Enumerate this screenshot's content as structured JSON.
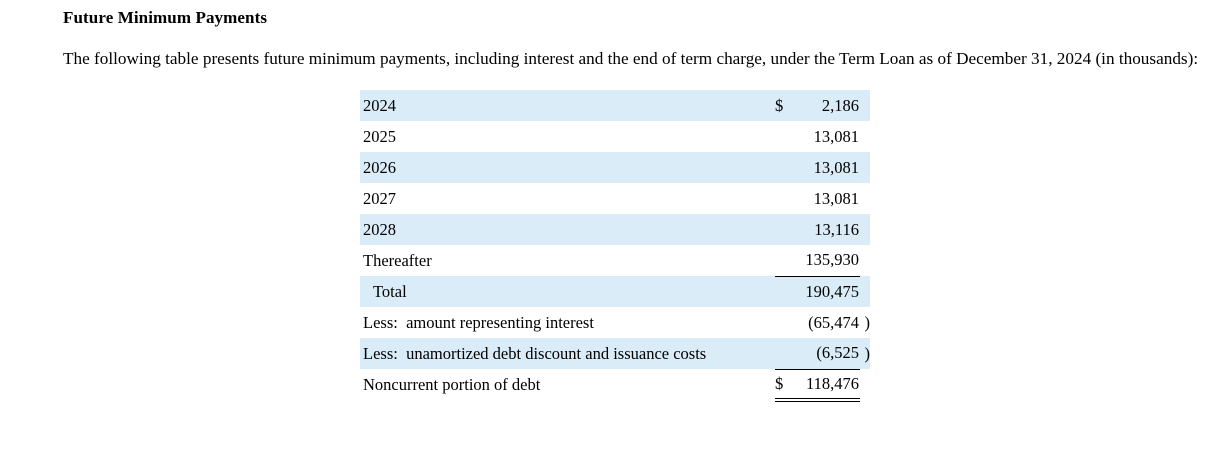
{
  "page": {
    "heading": "Future Minimum Payments",
    "intro": "The following table presents future minimum payments, including interest and the end of term charge, under the Term Loan as of December 31, 2024 (in thousands):"
  },
  "table": {
    "unit_note": "in thousands",
    "rows": [
      {
        "label": "2024",
        "currency": "$",
        "amount": "2,186",
        "paren": "",
        "shaded": true,
        "indent": false,
        "underline": false,
        "double_underline": false
      },
      {
        "label": "2025",
        "currency": "",
        "amount": "13,081",
        "paren": "",
        "shaded": false,
        "indent": false,
        "underline": false,
        "double_underline": false
      },
      {
        "label": "2026",
        "currency": "",
        "amount": "13,081",
        "paren": "",
        "shaded": true,
        "indent": false,
        "underline": false,
        "double_underline": false
      },
      {
        "label": "2027",
        "currency": "",
        "amount": "13,081",
        "paren": "",
        "shaded": false,
        "indent": false,
        "underline": false,
        "double_underline": false
      },
      {
        "label": "2028",
        "currency": "",
        "amount": "13,116",
        "paren": "",
        "shaded": true,
        "indent": false,
        "underline": false,
        "double_underline": false
      },
      {
        "label": "Thereafter",
        "currency": "",
        "amount": "135,930",
        "paren": "",
        "shaded": false,
        "indent": false,
        "underline": true,
        "double_underline": false
      },
      {
        "label": "Total",
        "currency": "",
        "amount": "190,475",
        "paren": "",
        "shaded": true,
        "indent": true,
        "underline": false,
        "double_underline": false
      },
      {
        "label": "Less:  amount representing interest",
        "currency": "",
        "amount": "(65,474",
        "paren": ")",
        "shaded": false,
        "indent": false,
        "underline": false,
        "double_underline": false
      },
      {
        "label": "Less:  unamortized debt discount and issuance costs",
        "currency": "",
        "amount": "(6,525",
        "paren": ")",
        "shaded": true,
        "indent": false,
        "underline": true,
        "double_underline": false
      },
      {
        "label": "Noncurrent portion of debt",
        "currency": "$",
        "amount": "118,476",
        "paren": "",
        "shaded": false,
        "indent": false,
        "underline": false,
        "double_underline": true
      }
    ]
  },
  "colors": {
    "row_shade": "#daecf8",
    "text": "#000000",
    "background": "#ffffff"
  }
}
